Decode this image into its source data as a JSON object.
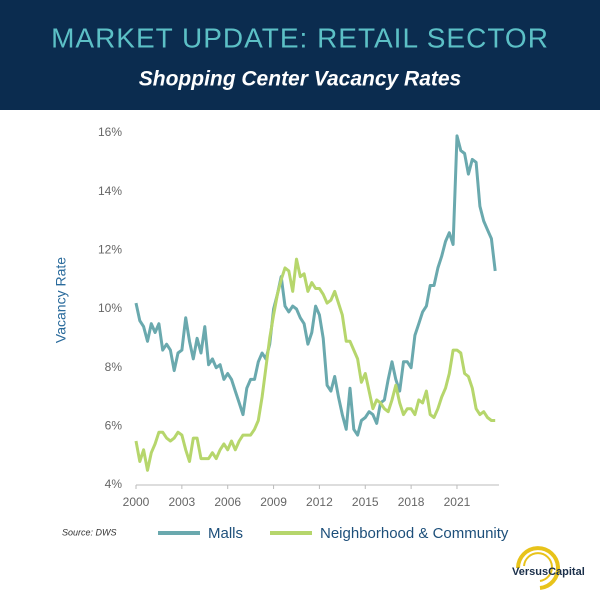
{
  "chart_data": {
    "type": "line",
    "title": "MARKET UPDATE: RETAIL SECTOR",
    "subtitle": "Shopping Center Vacancy Rates",
    "y_label": "Vacancy Rate",
    "source": "Source: DWS",
    "logo": "VersusCapital",
    "x": [
      2000,
      2000.25,
      2000.5,
      2000.75,
      2001,
      2001.25,
      2001.5,
      2001.75,
      2002,
      2002.25,
      2002.5,
      2002.75,
      2003,
      2003.25,
      2003.5,
      2003.75,
      2004,
      2004.25,
      2004.5,
      2004.75,
      2005,
      2005.25,
      2005.5,
      2005.75,
      2006,
      2006.25,
      2006.5,
      2006.75,
      2007,
      2007.25,
      2007.5,
      2007.75,
      2008,
      2008.25,
      2008.5,
      2008.75,
      2009,
      2009.25,
      2009.5,
      2009.75,
      2010,
      2010.25,
      2010.5,
      2010.75,
      2011,
      2011.25,
      2011.5,
      2011.75,
      2012,
      2012.25,
      2012.5,
      2012.75,
      2013,
      2013.25,
      2013.5,
      2013.75,
      2014,
      2014.25,
      2014.5,
      2014.75,
      2015,
      2015.25,
      2015.5,
      2015.75,
      2016,
      2016.25,
      2016.5,
      2016.75,
      2017,
      2017.25,
      2017.5,
      2017.75,
      2018,
      2018.25,
      2018.5,
      2018.75,
      2019,
      2019.25,
      2019.5,
      2019.75,
      2020,
      2020.25,
      2020.5,
      2020.75,
      2021,
      2021.25,
      2021.5,
      2021.75,
      2022,
      2022.25,
      2022.5,
      2022.75,
      2023,
      2023.25,
      2023.5
    ],
    "series": [
      {
        "name": "Malls",
        "color": "#6aa9ae",
        "values": [
          10.2,
          9.6,
          9.4,
          8.9,
          9.5,
          9.2,
          9.5,
          8.6,
          8.8,
          8.6,
          7.9,
          8.5,
          8.6,
          9.7,
          8.9,
          8.3,
          9.0,
          8.5,
          9.4,
          8.1,
          8.3,
          8.0,
          8.1,
          7.6,
          7.8,
          7.6,
          7.2,
          6.8,
          6.4,
          7.3,
          7.6,
          7.6,
          8.2,
          8.5,
          8.3,
          8.8,
          10.0,
          10.5,
          11.1,
          10.1,
          9.9,
          10.1,
          10.0,
          9.7,
          9.5,
          8.8,
          9.2,
          10.1,
          9.8,
          9.0,
          7.4,
          7.2,
          7.7,
          7.0,
          6.4,
          5.9,
          7.3,
          5.9,
          5.7,
          6.2,
          6.3,
          6.5,
          6.4,
          6.1,
          6.8,
          6.9,
          7.6,
          8.2,
          7.6,
          7.2,
          8.2,
          8.2,
          8.0,
          9.1,
          9.5,
          9.9,
          10.1,
          10.8,
          10.8,
          11.4,
          11.8,
          12.3,
          12.6,
          12.2,
          15.9,
          15.4,
          15.3,
          14.6,
          15.1,
          15.0,
          13.5,
          13.0,
          12.7,
          12.4,
          11.3
        ]
      },
      {
        "name": "Neighborhood & Community",
        "color": "#b6d66c",
        "values": [
          5.5,
          4.8,
          5.2,
          4.5,
          5.1,
          5.4,
          5.8,
          5.8,
          5.6,
          5.5,
          5.6,
          5.8,
          5.7,
          5.2,
          4.8,
          5.6,
          5.6,
          4.9,
          4.9,
          4.9,
          5.1,
          4.9,
          5.2,
          5.4,
          5.2,
          5.5,
          5.2,
          5.5,
          5.7,
          5.7,
          5.7,
          5.9,
          6.2,
          7.0,
          8.0,
          9.0,
          9.8,
          10.5,
          11.0,
          11.4,
          11.3,
          10.6,
          11.7,
          11.1,
          11.2,
          10.6,
          10.9,
          10.7,
          10.7,
          10.5,
          10.2,
          10.3,
          10.6,
          10.2,
          9.8,
          8.9,
          8.9,
          8.6,
          8.3,
          7.5,
          7.8,
          7.2,
          6.6,
          6.9,
          6.8,
          6.6,
          6.5,
          6.9,
          7.4,
          6.8,
          6.4,
          6.6,
          6.6,
          6.4,
          6.9,
          6.8,
          7.2,
          6.4,
          6.3,
          6.6,
          7.0,
          7.3,
          7.8,
          8.6,
          8.6,
          8.5,
          7.8,
          7.7,
          7.3,
          6.6,
          6.4,
          6.5,
          6.3,
          6.2,
          6.2
        ]
      }
    ],
    "xlim": [
      2000,
      2023.75
    ],
    "xticks": [
      2000,
      2003,
      2006,
      2009,
      2012,
      2015,
      2018,
      2021
    ],
    "ylim": [
      4,
      16
    ],
    "yticks": [
      {
        "value": 4,
        "label": "4%"
      },
      {
        "value": 6,
        "label": "6%"
      },
      {
        "value": 8,
        "label": "8%"
      },
      {
        "value": 10,
        "label": "10%"
      },
      {
        "value": 12,
        "label": "12%"
      },
      {
        "value": 14,
        "label": "14%"
      },
      {
        "value": 16,
        "label": "16%"
      }
    ],
    "grid": false,
    "legend": "bottom"
  }
}
